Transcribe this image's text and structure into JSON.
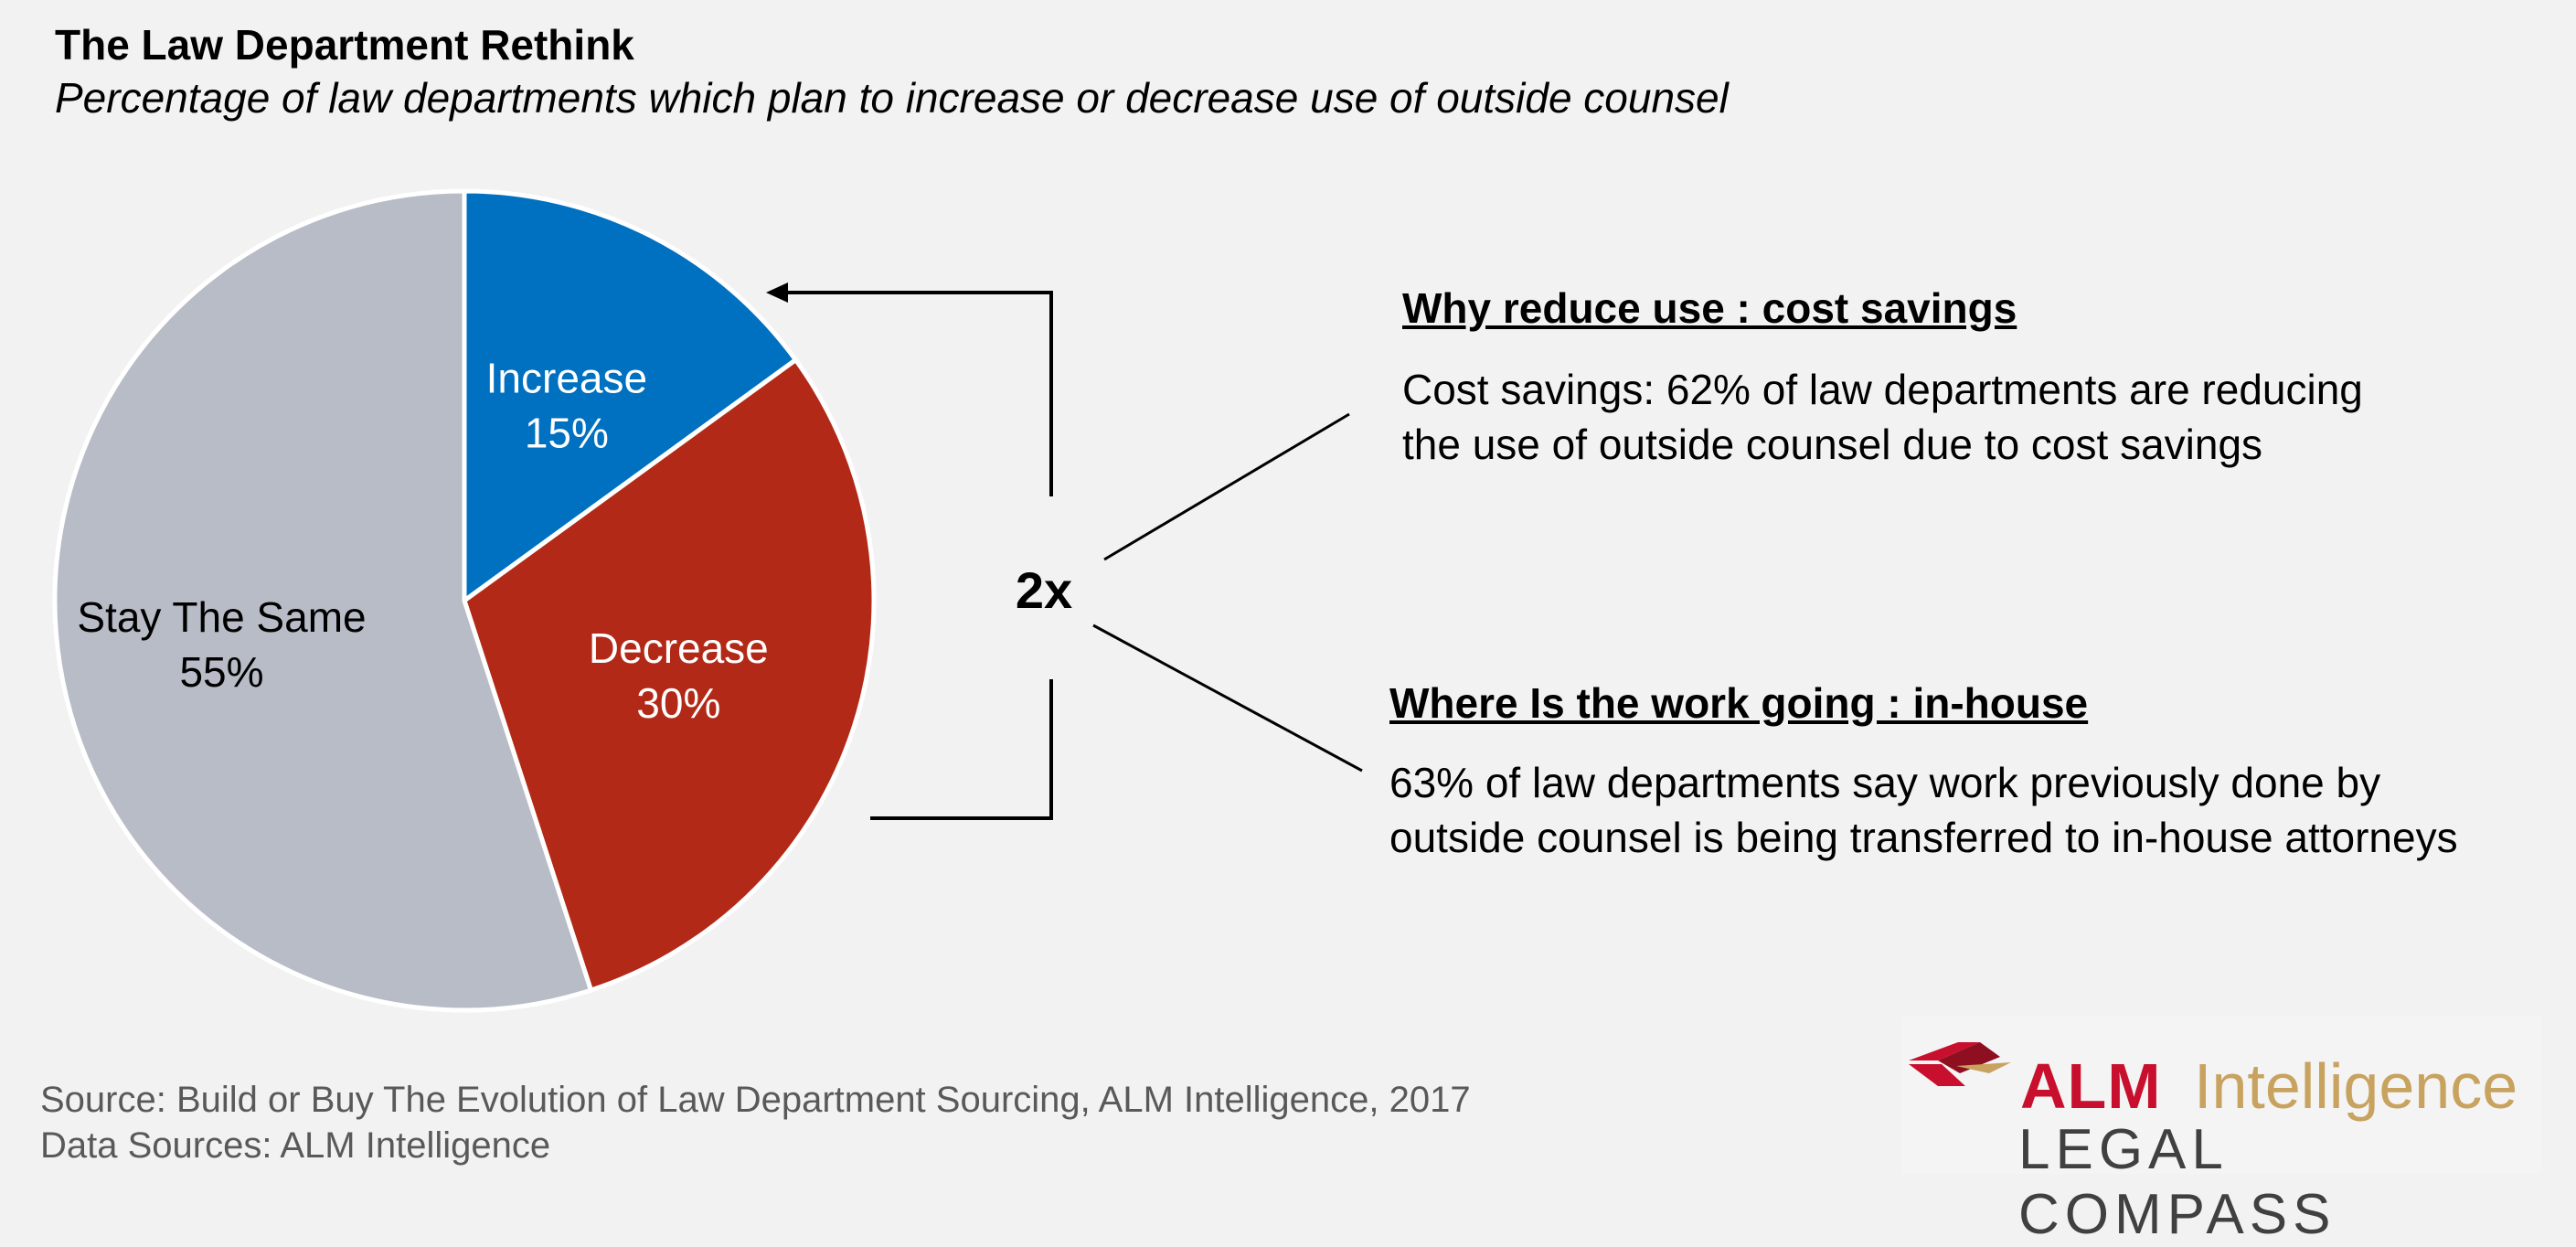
{
  "header": {
    "title": "The Law Department Rethink",
    "subtitle": "Percentage of law departments which plan to increase or decrease use of outside counsel"
  },
  "chart_data": {
    "type": "pie",
    "slices": [
      {
        "label": "Increase",
        "value": 15,
        "display": "15%",
        "color": "#0070c0",
        "text_color": "#ffffff"
      },
      {
        "label": "Decrease",
        "value": 30,
        "display": "30%",
        "color": "#b22a17",
        "text_color": "#ffffff"
      },
      {
        "label": "Stay The Same",
        "value": 55,
        "display": "55%",
        "color": "#b8bcc6",
        "text_color": "#000000"
      }
    ],
    "start_angle": "12 o'clock",
    "direction": "clockwise"
  },
  "annotation": {
    "multiplier": "2x"
  },
  "callouts": [
    {
      "heading": "Why reduce use : cost savings",
      "body": [
        "Cost savings: 62% of law departments are reducing",
        "the use of outside counsel due to cost savings"
      ]
    },
    {
      "heading": "Where Is the work going : in-house",
      "body": [
        "63% of law departments say work previously done by",
        "outside counsel is being transferred to in-house attorneys"
      ]
    }
  ],
  "footer": {
    "source": "Source: Build or Buy The Evolution of Law Department Sourcing, ALM Intelligence, 2017",
    "data_sources": "Data Sources: ALM Intelligence"
  },
  "logo": {
    "brand": "ALM",
    "product": "Intelligence",
    "tagline": "LEGAL COMPASS",
    "colors": {
      "red": "#c8102e",
      "gold": "#c8a25f",
      "dark": "#404040"
    }
  }
}
